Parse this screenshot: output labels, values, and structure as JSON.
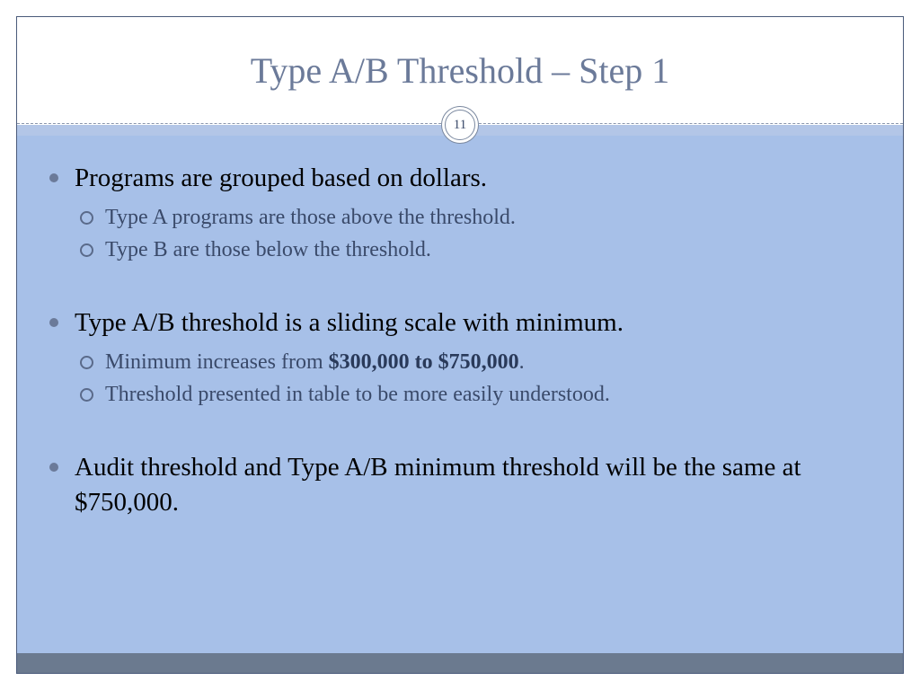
{
  "slide": {
    "title": "Type A/B Threshold – Step 1",
    "page_number": "11",
    "colors": {
      "title_color": "#6b7a99",
      "body_bg": "#a7c0e8",
      "accent_bar": "#b3c6e7",
      "footer_bar": "#6b7a8f",
      "border": "#4a5a7a",
      "main_bullet": "#6b7a99",
      "sub_bullet_border": "#5a6a8a",
      "sub_text": "#3a4a6a",
      "main_text": "#000000"
    },
    "typography": {
      "title_fontsize": 40,
      "main_bullet_fontsize": 29,
      "sub_bullet_fontsize": 24,
      "font_family": "Georgia"
    },
    "bullets": [
      {
        "text": "Programs are grouped based on dollars.",
        "sub": [
          {
            "text": "Type A programs are those above the threshold."
          },
          {
            "text": "Type B are those below the threshold."
          }
        ]
      },
      {
        "text": "Type A/B threshold is a sliding scale with minimum.",
        "sub": [
          {
            "prefix": "Minimum increases from ",
            "bold": "$300,000 to $750,000",
            "suffix": "."
          },
          {
            "text": "Threshold presented in table to be more easily understood."
          }
        ]
      },
      {
        "text": "Audit threshold and Type A/B minimum threshold will be the same at $750,000.",
        "sub": []
      }
    ]
  }
}
